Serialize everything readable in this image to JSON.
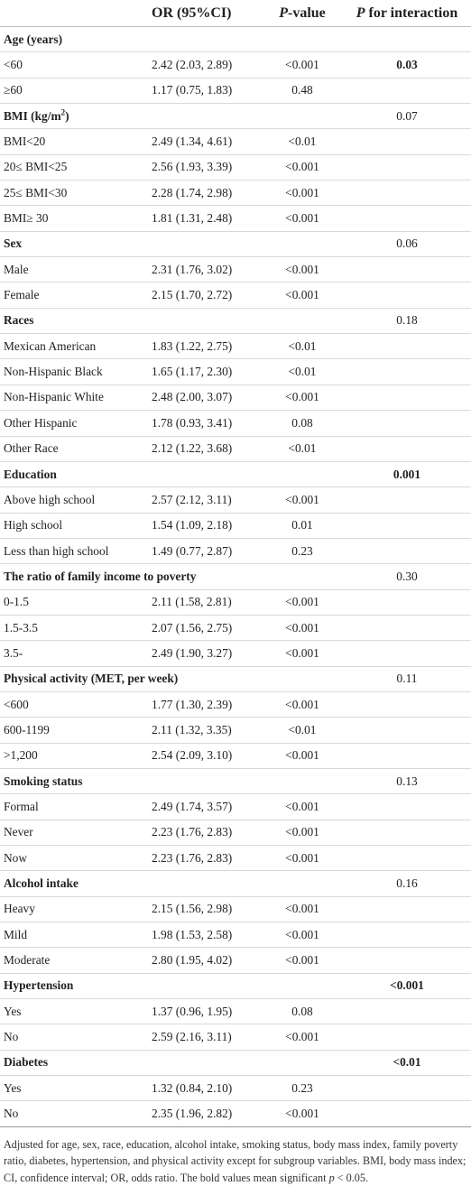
{
  "header": {
    "or": "OR (95%CI)",
    "pvalue_p": "P",
    "pvalue_rest": "-value",
    "interaction_p": "P",
    "interaction_rest": " for interaction"
  },
  "rows": [
    {
      "group": true,
      "label": "Age (years)",
      "interaction": "",
      "bold": false
    },
    {
      "label": "<60",
      "or": "2.42 (2.03, 2.89)",
      "p": "<0.001",
      "interaction": "0.03",
      "bold": true
    },
    {
      "label": "≥60",
      "or": "1.17 (0.75, 1.83)",
      "p": "0.48",
      "interaction": ""
    },
    {
      "group": true,
      "label": "BMI (kg/m",
      "sup": "2",
      "label_tail": ")",
      "interaction": "0.07",
      "bold": false
    },
    {
      "label": "BMI<20",
      "or": "2.49 (1.34, 4.61)",
      "p": "<0.01",
      "interaction": ""
    },
    {
      "label": "20≤ BMI<25",
      "or": "2.56 (1.93, 3.39)",
      "p": "<0.001",
      "interaction": ""
    },
    {
      "label": "25≤ BMI<30",
      "or": "2.28 (1.74, 2.98)",
      "p": "<0.001",
      "interaction": ""
    },
    {
      "label": "BMI≥ 30",
      "or": "1.81 (1.31, 2.48)",
      "p": "<0.001",
      "interaction": ""
    },
    {
      "group": true,
      "label": "Sex",
      "interaction": "0.06",
      "bold": false
    },
    {
      "label": "Male",
      "or": "2.31 (1.76, 3.02)",
      "p": "<0.001",
      "interaction": ""
    },
    {
      "label": "Female",
      "or": "2.15 (1.70, 2.72)",
      "p": "<0.001",
      "interaction": ""
    },
    {
      "group": true,
      "label": "Races",
      "interaction": "0.18",
      "bold": false
    },
    {
      "label": "Mexican American",
      "or": "1.83 (1.22, 2.75)",
      "p": "<0.01",
      "interaction": ""
    },
    {
      "label": "Non-Hispanic Black",
      "or": "1.65 (1.17, 2.30)",
      "p": "<0.01",
      "interaction": ""
    },
    {
      "label": "Non-Hispanic White",
      "or": "2.48 (2.00, 3.07)",
      "p": "<0.001",
      "interaction": ""
    },
    {
      "label": "Other Hispanic",
      "or": "1.78 (0.93, 3.41)",
      "p": "0.08",
      "interaction": ""
    },
    {
      "label": "Other Race",
      "or": "2.12 (1.22, 3.68)",
      "p": "<0.01",
      "interaction": ""
    },
    {
      "group": true,
      "label": "Education",
      "interaction": "0.001",
      "bold": true
    },
    {
      "label": "Above high school",
      "or": "2.57 (2.12, 3.11)",
      "p": "<0.001",
      "interaction": ""
    },
    {
      "label": "High school",
      "or": "1.54 (1.09, 2.18)",
      "p": "0.01",
      "interaction": ""
    },
    {
      "label": "Less than high school",
      "or": "1.49 (0.77, 2.87)",
      "p": "0.23",
      "interaction": ""
    },
    {
      "group": true,
      "label": "The ratio of family income to poverty",
      "interaction": "0.30",
      "bold": false
    },
    {
      "label": "0-1.5",
      "or": "2.11 (1.58, 2.81)",
      "p": "<0.001",
      "interaction": ""
    },
    {
      "label": "1.5-3.5",
      "or": "2.07 (1.56, 2.75)",
      "p": "<0.001",
      "interaction": ""
    },
    {
      "label": "3.5-",
      "or": "2.49 (1.90, 3.27)",
      "p": "<0.001",
      "interaction": ""
    },
    {
      "group": true,
      "label": "Physical activity (MET, per week)",
      "interaction": "0.11",
      "bold": false
    },
    {
      "label": "<600",
      "or": "1.77 (1.30, 2.39)",
      "p": "<0.001",
      "interaction": ""
    },
    {
      "label": "600-1199",
      "or": "2.11 (1.32, 3.35)",
      "p": "<0.01",
      "interaction": ""
    },
    {
      "label": ">1,200",
      "or": "2.54 (2.09, 3.10)",
      "p": "<0.001",
      "interaction": ""
    },
    {
      "group": true,
      "label": "Smoking status",
      "interaction": "0.13",
      "bold": false
    },
    {
      "label": "Formal",
      "or": "2.49 (1.74, 3.57)",
      "p": "<0.001",
      "interaction": ""
    },
    {
      "label": "Never",
      "or": "2.23 (1.76, 2.83)",
      "p": "<0.001",
      "interaction": ""
    },
    {
      "label": "Now",
      "or": "2.23 (1.76, 2.83)",
      "p": "<0.001",
      "interaction": ""
    },
    {
      "group": true,
      "label": "Alcohol intake",
      "interaction": "0.16",
      "bold": false
    },
    {
      "label": "Heavy",
      "or": "2.15 (1.56, 2.98)",
      "p": "<0.001",
      "interaction": ""
    },
    {
      "label": "Mild",
      "or": "1.98 (1.53, 2.58)",
      "p": "<0.001",
      "interaction": ""
    },
    {
      "label": "Moderate",
      "or": "2.80 (1.95, 4.02)",
      "p": "<0.001",
      "interaction": ""
    },
    {
      "group": true,
      "label": "Hypertension",
      "interaction": "<0.001",
      "bold": true
    },
    {
      "label": "Yes",
      "or": "1.37 (0.96, 1.95)",
      "p": "0.08",
      "interaction": ""
    },
    {
      "label": "No",
      "or": "2.59 (2.16, 3.11)",
      "p": "<0.001",
      "interaction": ""
    },
    {
      "group": true,
      "label": "Diabetes",
      "interaction": "<0.01",
      "bold": true
    },
    {
      "label": "Yes",
      "or": "1.32 (0.84, 2.10)",
      "p": "0.23",
      "interaction": ""
    },
    {
      "label": "No",
      "or": "2.35 (1.96, 2.82)",
      "p": "<0.001",
      "interaction": ""
    }
  ],
  "footnote": {
    "main": "Adjusted for age, sex, race, education, alcohol intake, smoking status, body mass index, family poverty ratio, diabetes, hypertension, and physical activity except for subgroup variables. BMI, body mass index; CI, confidence interval; OR, odds ratio. The bold values mean significant ",
    "p_letter": "p",
    "tail": " < 0.05."
  }
}
